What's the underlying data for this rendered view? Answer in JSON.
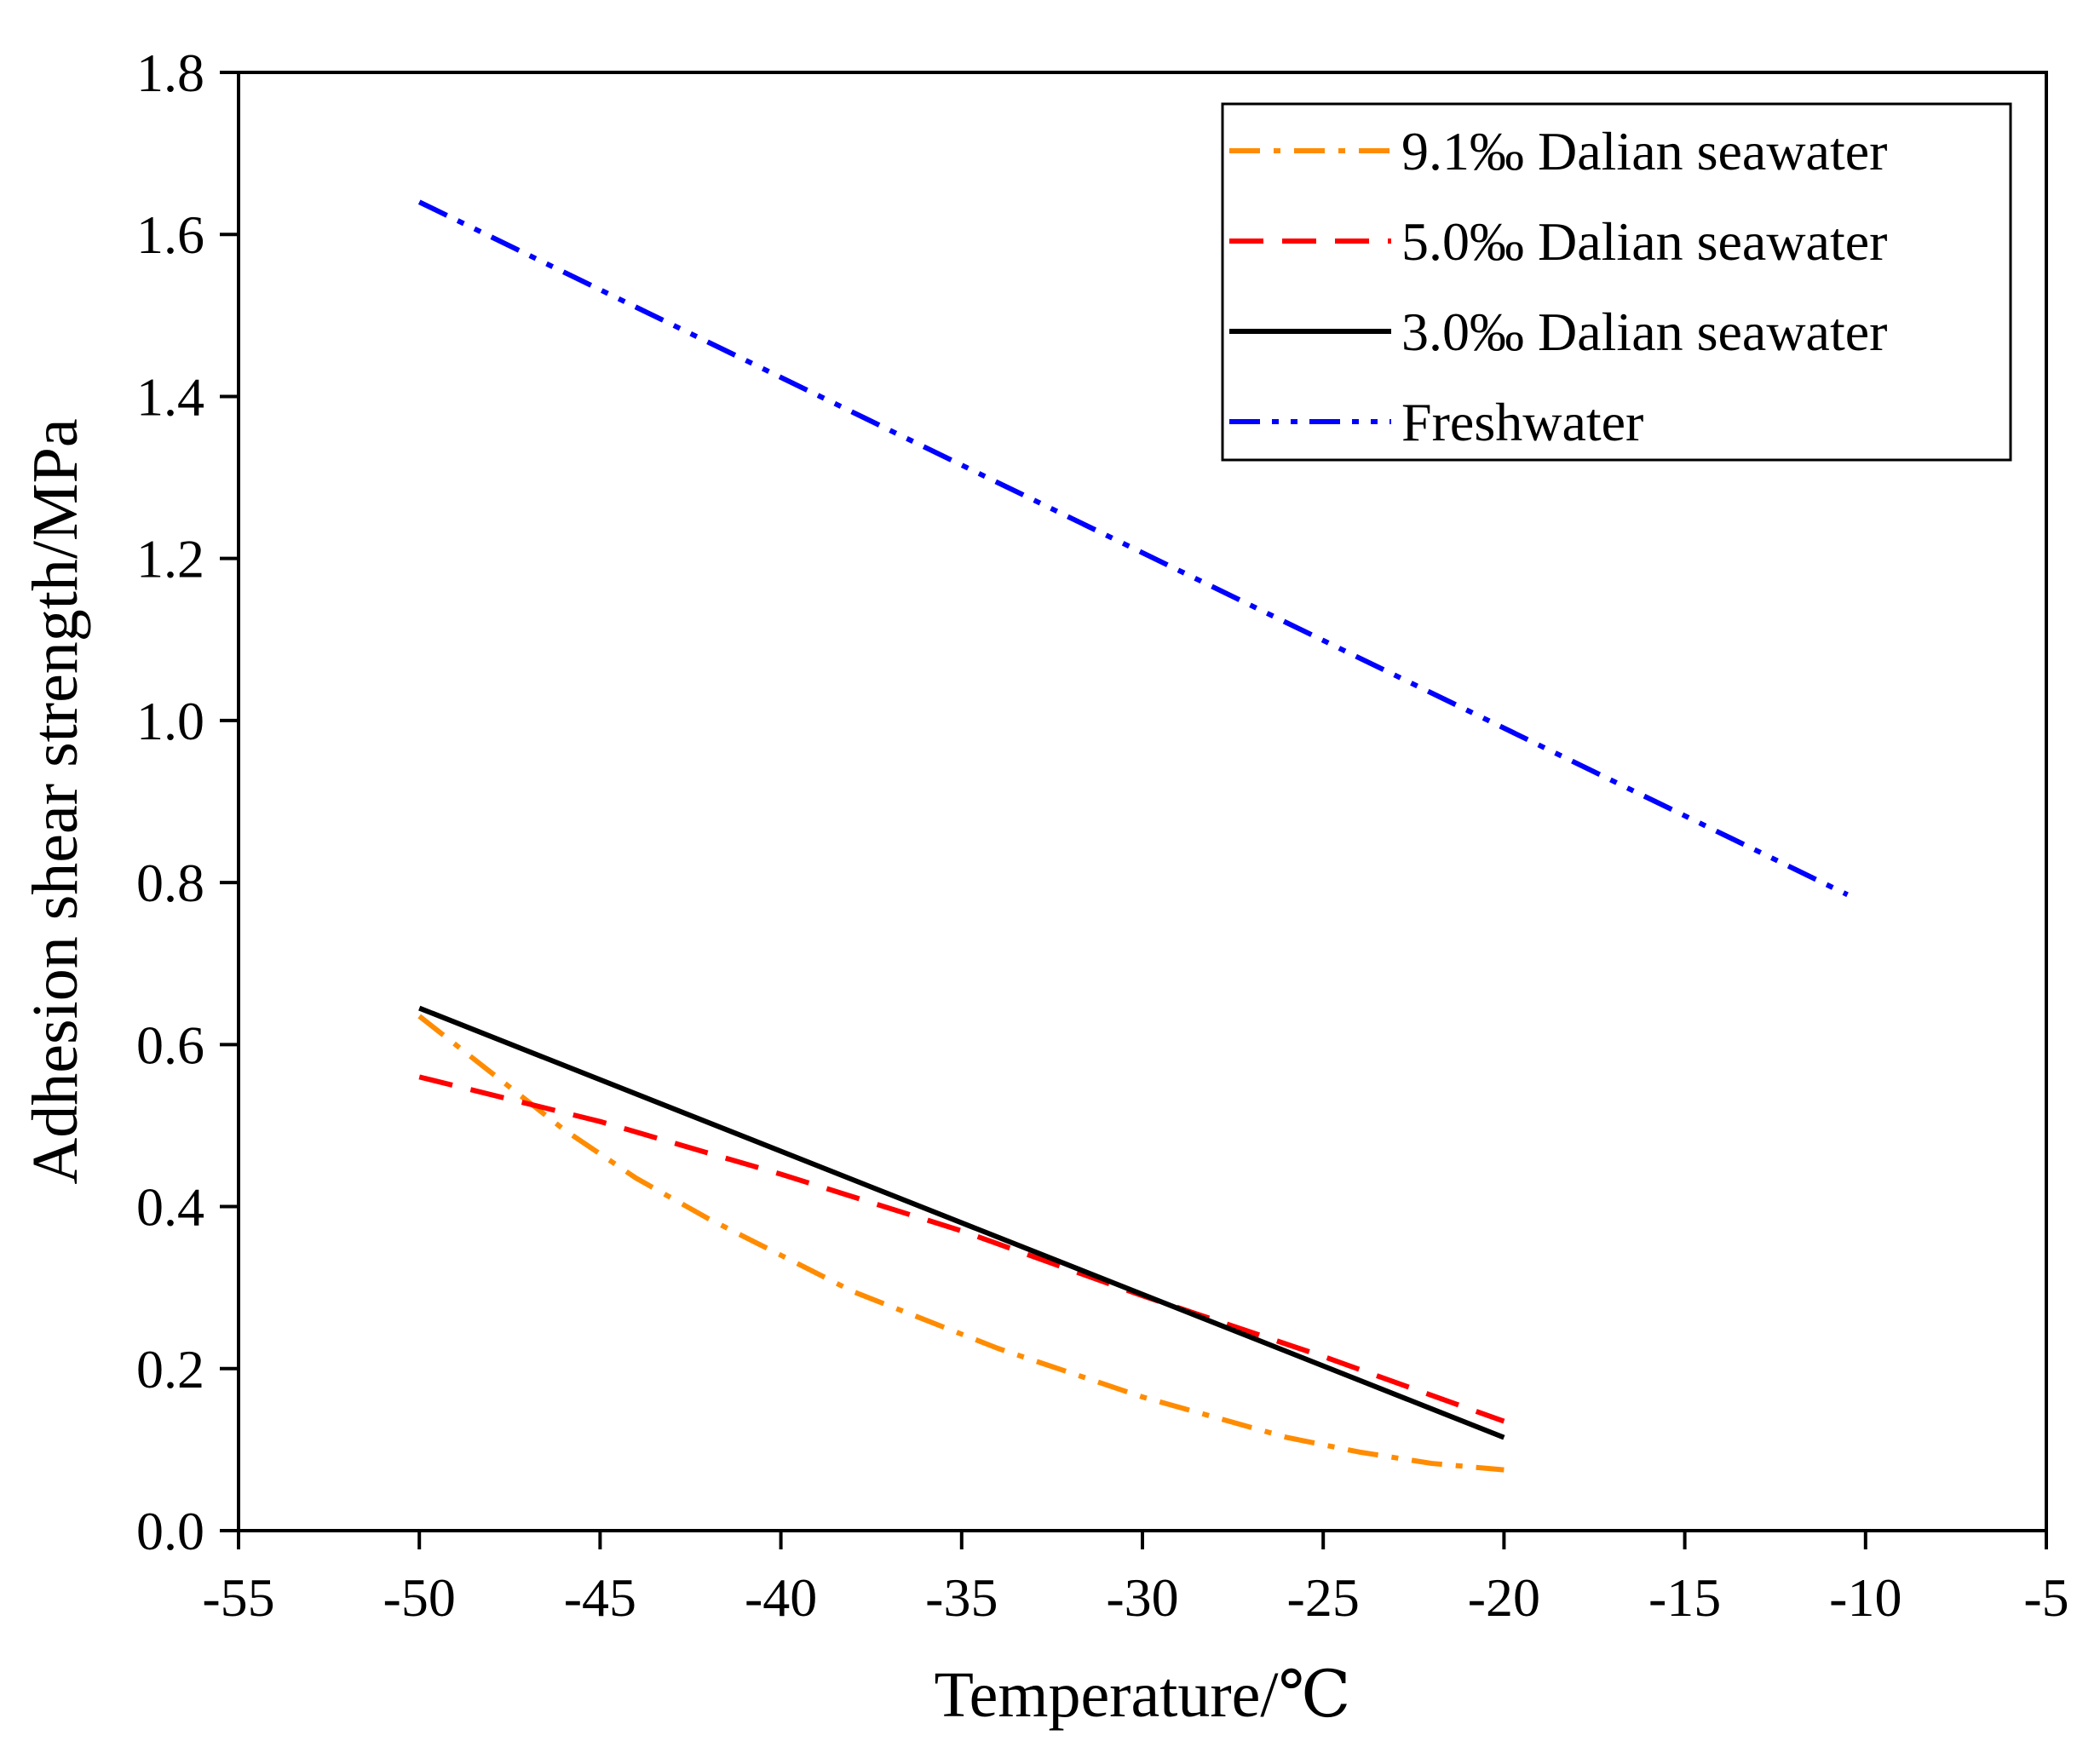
{
  "chart_data": {
    "type": "line",
    "title": "",
    "xlabel": "Temperature/℃",
    "ylabel": "Adhesion shear strength/MPa",
    "xlim": [
      -55,
      -5
    ],
    "ylim": [
      0.0,
      1.8
    ],
    "xticks": [
      "-55",
      "-50",
      "-45",
      "-40",
      "-35",
      "-30",
      "-25",
      "-20",
      "-15",
      "-10",
      "-5"
    ],
    "yticks": [
      "0.0",
      "0.2",
      "0.4",
      "0.6",
      "0.8",
      "1.0",
      "1.2",
      "1.4",
      "1.6",
      "1.8"
    ],
    "grid": false,
    "legend_position": "top-right",
    "series": [
      {
        "name": "9.1‰ Dalian seawater",
        "color": "#FF8C00",
        "style": "dash-dot",
        "x": [
          -50,
          -48,
          -46,
          -44,
          -42,
          -40,
          -38,
          -36,
          -34,
          -32,
          -30,
          -28,
          -26,
          -24,
          -22,
          -20
        ],
        "y": [
          0.635,
          0.565,
          0.495,
          0.435,
          0.385,
          0.34,
          0.295,
          0.26,
          0.225,
          0.195,
          0.165,
          0.14,
          0.115,
          0.097,
          0.083,
          0.075
        ]
      },
      {
        "name": "5.0‰ Dalian seawater",
        "color": "#FF0000",
        "style": "dashed",
        "x": [
          -50,
          -45,
          -40,
          -35,
          -30,
          -25,
          -20
        ],
        "y": [
          0.56,
          0.505,
          0.44,
          0.37,
          0.29,
          0.215,
          0.135
        ]
      },
      {
        "name": "3.0‰ Dalian seawater",
        "color": "#000000",
        "style": "solid",
        "x": [
          -50,
          -20
        ],
        "y": [
          0.645,
          0.115
        ]
      },
      {
        "name": "Freshwater",
        "color": "#0000FF",
        "style": "dash-dot-dot",
        "x": [
          -50,
          -10.5
        ],
        "y": [
          1.64,
          0.785
        ]
      }
    ]
  }
}
